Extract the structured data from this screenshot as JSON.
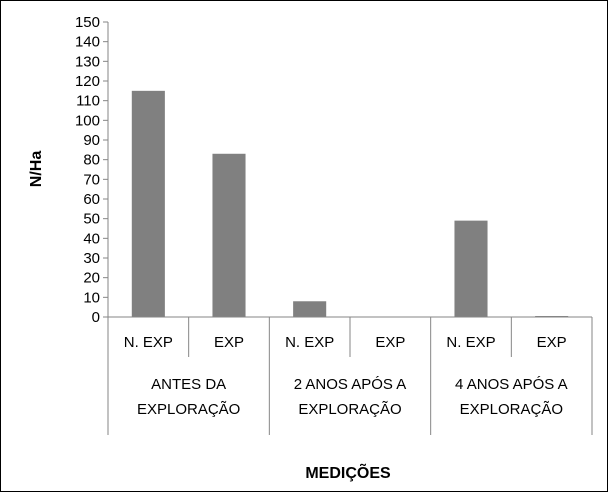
{
  "chart_data": {
    "type": "bar",
    "title": "",
    "ylabel": "N/Ha",
    "xlabel": "MEDIÇÕES",
    "ylim": [
      0,
      150
    ],
    "ytick_step": 10,
    "grid": false,
    "legend": "none",
    "groups": [
      {
        "label_lines": [
          "ANTES DA",
          "EXPLORAÇÃO"
        ],
        "categories": [
          "N. EXP",
          "EXP"
        ],
        "values": [
          115,
          83
        ]
      },
      {
        "label_lines": [
          "2 ANOS APÓS A",
          "EXPLORAÇÃO"
        ],
        "categories": [
          "N. EXP",
          "EXP"
        ],
        "values": [
          8,
          0
        ]
      },
      {
        "label_lines": [
          "4 ANOS APÓS A",
          "EXPLORAÇÃO"
        ],
        "categories": [
          "N. EXP",
          "EXP"
        ],
        "values": [
          49,
          0.5
        ]
      }
    ],
    "bar_color": "#808080"
  }
}
